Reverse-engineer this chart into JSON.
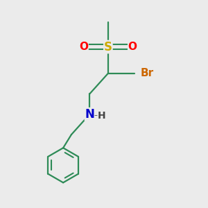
{
  "background_color": "#ebebeb",
  "bond_color": "#2e8b57",
  "atom_colors": {
    "S": "#ccaa00",
    "O": "#ff0000",
    "N": "#0000cc",
    "Br": "#cc6600",
    "C": "#000000",
    "H": "#444444"
  },
  "figsize": [
    3.0,
    3.0
  ],
  "dpi": 100
}
